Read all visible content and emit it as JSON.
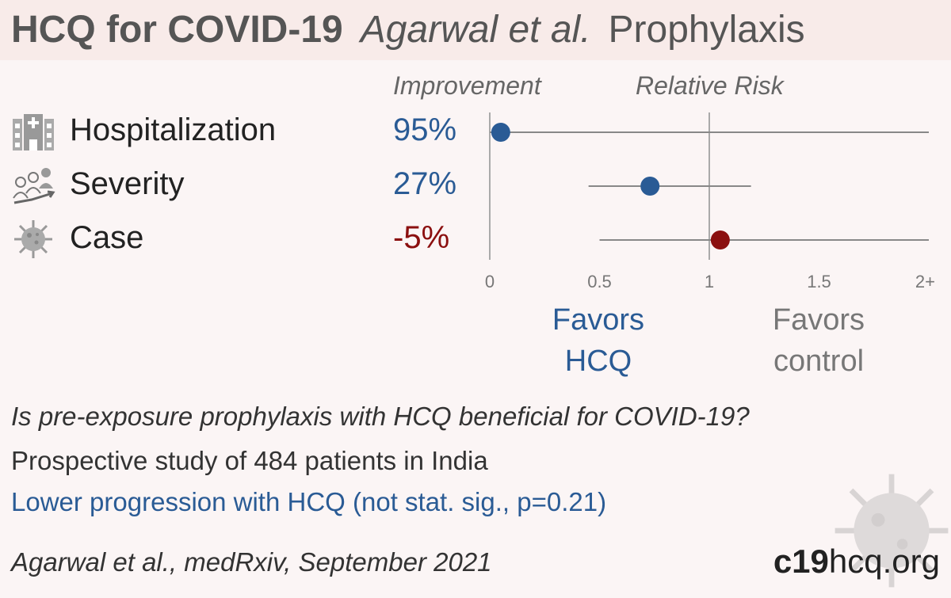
{
  "header": {
    "drug": "HCQ for COVID-19",
    "author": "Agarwal et al.",
    "kind": "Prophylaxis"
  },
  "columns": {
    "improvement_label": "Improvement",
    "rr_label": "Relative Risk"
  },
  "outcomes": [
    {
      "label": "Hospitalization",
      "improvement": "95%",
      "icon": "hospital-icon"
    },
    {
      "label": "Severity",
      "improvement": "27%",
      "icon": "severity-icon"
    },
    {
      "label": "Case",
      "improvement": "-5%",
      "icon": "virus-icon"
    }
  ],
  "favors": {
    "treatment": "Favors\nHCQ",
    "control": "Favors\ncontrol"
  },
  "colors": {
    "favorable": "#2a5b95",
    "unfavorable": "#8b0f0f"
  },
  "chart_data": {
    "type": "forest",
    "x_axis": "Relative Risk",
    "xlim": [
      0,
      2
    ],
    "ticks": [
      {
        "value": 0,
        "label": "0"
      },
      {
        "value": 0.5,
        "label": "0.5"
      },
      {
        "value": 1,
        "label": "1"
      },
      {
        "value": 1.5,
        "label": "1.5"
      },
      {
        "value": 2,
        "label": "2+"
      }
    ],
    "reference_line": 1,
    "rows": [
      {
        "outcome": "Hospitalization",
        "rr": 0.05,
        "ci_low": 0.0,
        "ci_high": 2.0,
        "improvement": "95%"
      },
      {
        "outcome": "Severity",
        "rr": 0.73,
        "ci_low": 0.45,
        "ci_high": 1.19,
        "improvement": "27%"
      },
      {
        "outcome": "Case",
        "rr": 1.05,
        "ci_low": 0.5,
        "ci_high": 2.0,
        "improvement": "-5%"
      }
    ]
  },
  "footer": {
    "question": "Is pre-exposure prophylaxis with HCQ beneficial for COVID-19?",
    "design": "Prospective study of 484 patients in India",
    "conclusion": "Lower progression with HCQ (not stat. sig., p=0.21)",
    "citation": "Agarwal et al., medRxiv, September 2021",
    "site_bold": "c19",
    "site_rest": "hcq.org"
  }
}
